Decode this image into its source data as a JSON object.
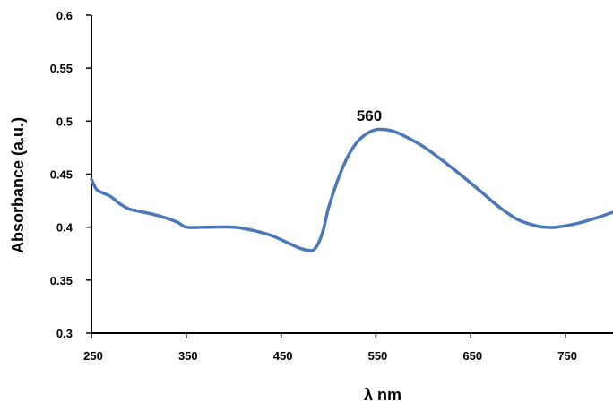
{
  "chart_data": {
    "type": "line",
    "title": "",
    "xlabel": "λ nm",
    "ylabel": "Absorbance (a.u.)",
    "xlim": [
      250,
      800
    ],
    "ylim": [
      0.3,
      0.6
    ],
    "x_ticks": [
      "250",
      "350",
      "450",
      "550",
      "650",
      "750"
    ],
    "y_ticks": [
      "0.3",
      "0.35",
      "0.4",
      "0.45",
      "0.5",
      "0.55",
      "0.6"
    ],
    "grid": false,
    "legend": "none",
    "colors": {
      "line": "#4a78b8",
      "axis": "#000000"
    },
    "annotations": [
      {
        "text": "560",
        "x": 560,
        "y": 0.497
      }
    ],
    "series": [
      {
        "x": [
          250,
          255,
          260,
          270,
          280,
          290,
          300,
          320,
          340,
          350,
          370,
          400,
          420,
          440,
          460,
          470,
          480,
          485,
          490,
          495,
          500,
          510,
          520,
          530,
          540,
          550,
          560,
          570,
          580,
          600,
          620,
          640,
          660,
          680,
          700,
          720,
          730,
          740,
          760,
          780,
          800
        ],
        "y": [
          0.445,
          0.436,
          0.433,
          0.429,
          0.422,
          0.417,
          0.415,
          0.411,
          0.405,
          0.4,
          0.4,
          0.4,
          0.397,
          0.392,
          0.384,
          0.38,
          0.378,
          0.379,
          0.386,
          0.399,
          0.418,
          0.445,
          0.466,
          0.48,
          0.488,
          0.492,
          0.492,
          0.49,
          0.486,
          0.476,
          0.463,
          0.449,
          0.434,
          0.419,
          0.407,
          0.401,
          0.4,
          0.4,
          0.403,
          0.408,
          0.414
        ]
      }
    ]
  }
}
